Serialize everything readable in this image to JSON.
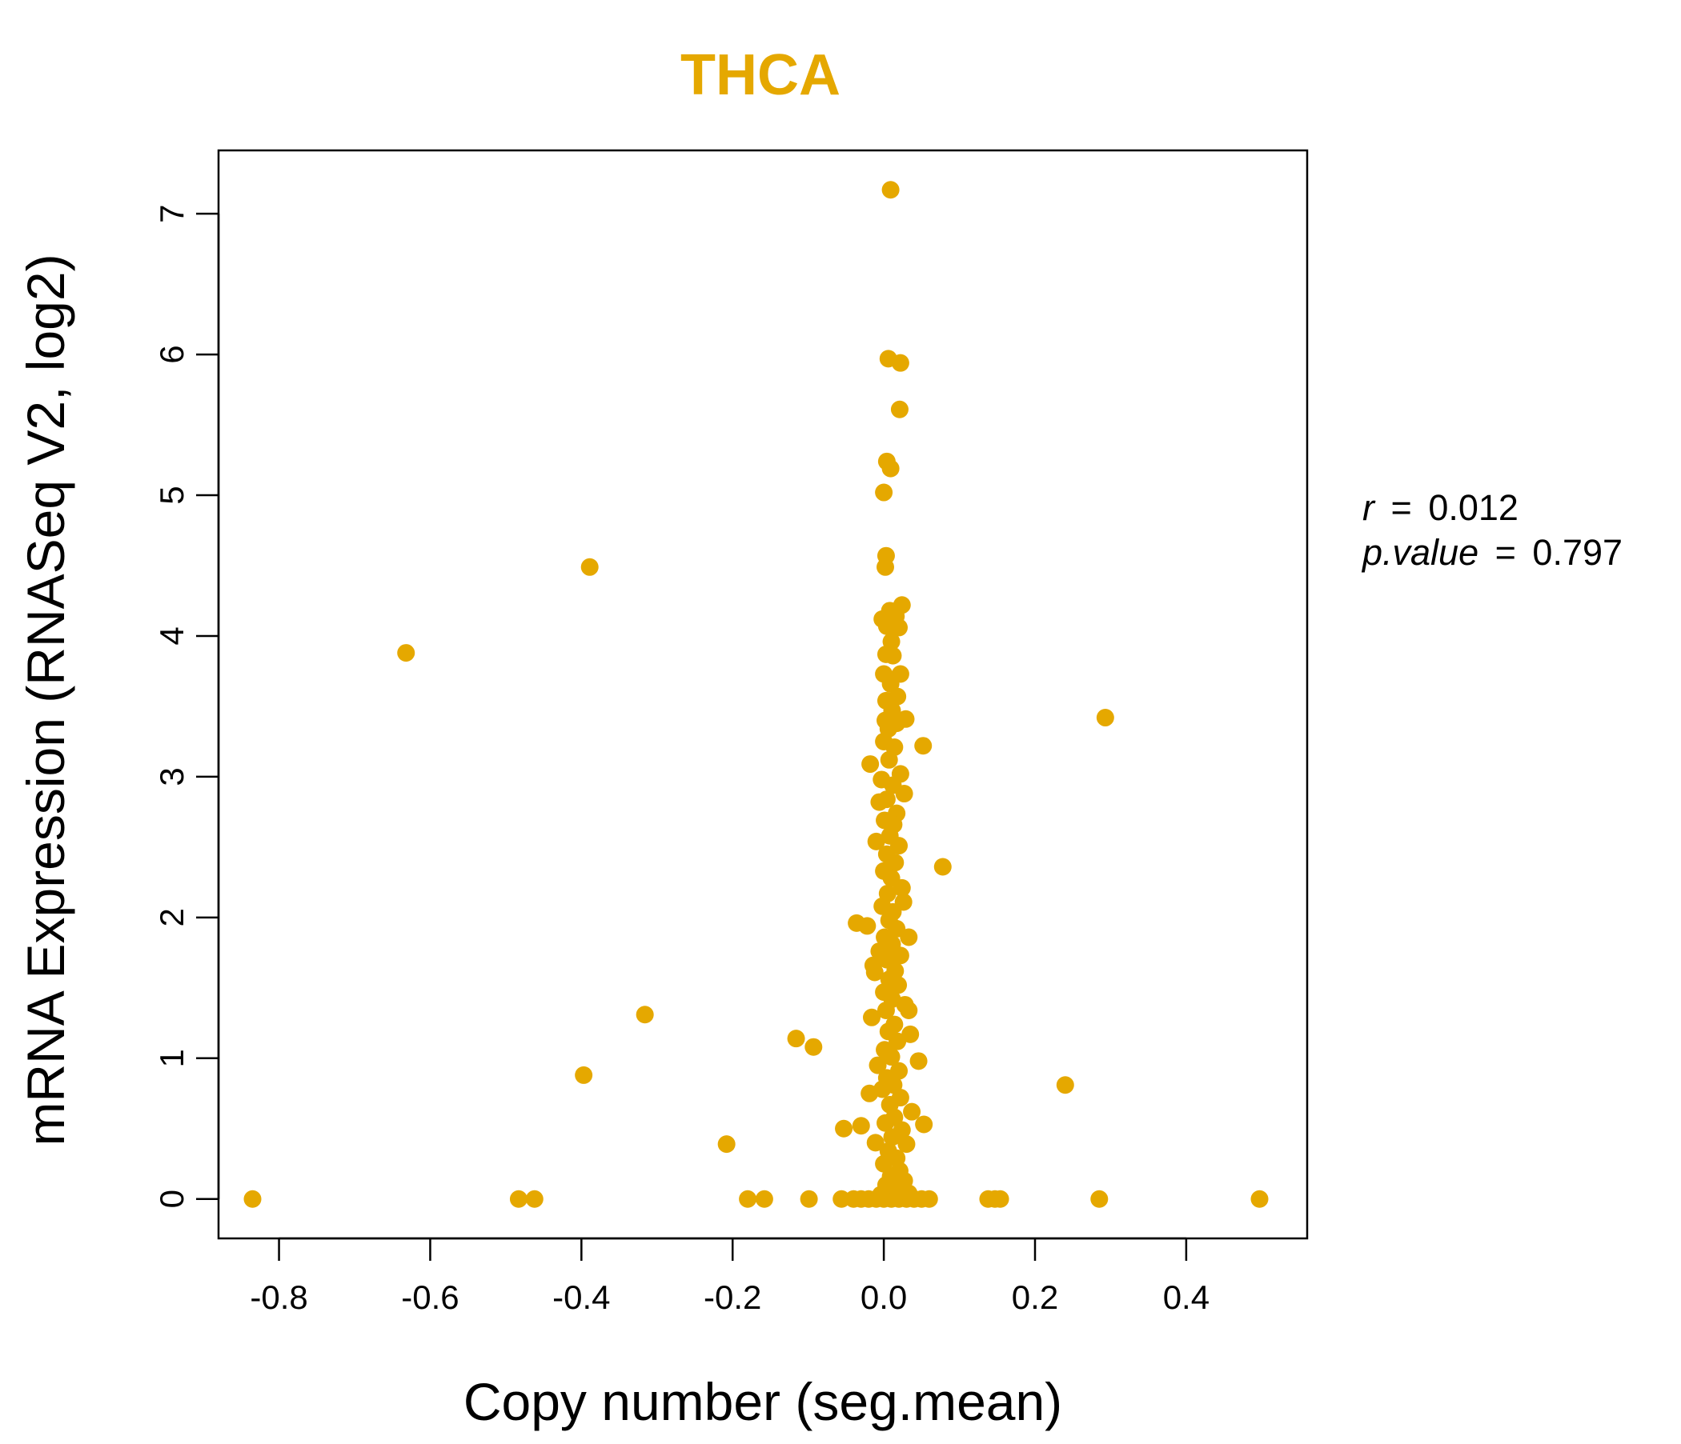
{
  "chart_data": {
    "type": "scatter",
    "title": "THCA",
    "xlabel": "Copy number (seg.mean)",
    "ylabel": "mRNA Expression (RNASeq V2, log2)",
    "xlim": [
      -0.88,
      0.56
    ],
    "ylim": [
      -0.28,
      7.45
    ],
    "x_ticks": [
      -0.8,
      -0.6,
      -0.4,
      -0.2,
      0.0,
      0.2,
      0.4
    ],
    "x_tick_labels": [
      "-0.8",
      "-0.6",
      "-0.4",
      "-0.2",
      "0.0",
      "0.2",
      "0.4"
    ],
    "y_ticks": [
      0,
      1,
      2,
      3,
      4,
      5,
      6,
      7
    ],
    "y_tick_labels": [
      "0",
      "1",
      "2",
      "3",
      "4",
      "5",
      "6",
      "7"
    ],
    "grid": false,
    "legend": "none",
    "point_color": "#E5A800",
    "stats": {
      "r_label": "r",
      "r_value": "0.012",
      "p_label": "p.value",
      "p_value": "0.797",
      "eq": "="
    },
    "points": [
      [
        -0.835,
        0
      ],
      [
        -0.483,
        0
      ],
      [
        -0.462,
        0
      ],
      [
        -0.18,
        0
      ],
      [
        -0.158,
        0
      ],
      [
        -0.099,
        0
      ],
      [
        -0.056,
        0
      ],
      [
        -0.04,
        0
      ],
      [
        -0.03,
        0
      ],
      [
        -0.02,
        0
      ],
      [
        -0.01,
        0
      ],
      [
        0.0,
        0
      ],
      [
        0.01,
        0
      ],
      [
        0.02,
        0
      ],
      [
        0.03,
        0
      ],
      [
        0.04,
        0
      ],
      [
        0.05,
        0
      ],
      [
        0.06,
        0
      ],
      [
        0.138,
        0
      ],
      [
        0.147,
        0
      ],
      [
        0.154,
        0
      ],
      [
        0.285,
        0
      ],
      [
        0.497,
        0
      ],
      [
        -0.632,
        3.88
      ],
      [
        -0.389,
        4.49
      ],
      [
        -0.316,
        1.31
      ],
      [
        -0.397,
        0.88
      ],
      [
        -0.208,
        0.39
      ],
      [
        -0.116,
        1.14
      ],
      [
        -0.093,
        1.08
      ],
      [
        -0.053,
        0.5
      ],
      [
        -0.036,
        1.96
      ],
      [
        -0.03,
        0.52
      ],
      [
        -0.022,
        1.94
      ],
      [
        -0.018,
        3.09
      ],
      [
        0.052,
        3.22
      ],
      [
        0.078,
        2.36
      ],
      [
        0.046,
        0.98
      ],
      [
        0.053,
        0.53
      ],
      [
        0.033,
        1.34
      ],
      [
        0.033,
        1.86
      ],
      [
        0.24,
        0.81
      ],
      [
        0.293,
        3.42
      ],
      [
        0.009,
        7.17
      ],
      [
        0.006,
        5.97
      ],
      [
        0.022,
        5.94
      ],
      [
        0.021,
        5.61
      ],
      [
        0.004,
        5.24
      ],
      [
        0.009,
        5.19
      ],
      [
        0.0,
        5.02
      ],
      [
        0.003,
        4.57
      ],
      [
        0.002,
        4.49
      ],
      [
        0.024,
        4.22
      ],
      [
        0.008,
        4.18
      ],
      [
        0.016,
        4.14
      ],
      [
        -0.002,
        4.12
      ],
      [
        0.004,
        4.07
      ],
      [
        0.02,
        4.06
      ],
      [
        0.01,
        3.96
      ],
      [
        0.003,
        3.87
      ],
      [
        0.012,
        3.86
      ],
      [
        0.0,
        3.73
      ],
      [
        0.022,
        3.73
      ],
      [
        0.009,
        3.66
      ],
      [
        0.018,
        3.57
      ],
      [
        0.003,
        3.54
      ],
      [
        0.011,
        3.47
      ],
      [
        0.029,
        3.41
      ],
      [
        0.002,
        3.4
      ],
      [
        0.017,
        3.38
      ],
      [
        0.006,
        3.34
      ],
      [
        0.0,
        3.25
      ],
      [
        0.014,
        3.21
      ],
      [
        0.007,
        3.12
      ],
      [
        0.022,
        3.02
      ],
      [
        -0.003,
        2.98
      ],
      [
        0.012,
        2.94
      ],
      [
        0.027,
        2.88
      ],
      [
        0.004,
        2.84
      ],
      [
        -0.006,
        2.82
      ],
      [
        0.017,
        2.74
      ],
      [
        0.001,
        2.69
      ],
      [
        0.013,
        2.66
      ],
      [
        0.008,
        2.58
      ],
      [
        -0.01,
        2.54
      ],
      [
        0.02,
        2.51
      ],
      [
        0.004,
        2.45
      ],
      [
        0.015,
        2.39
      ],
      [
        0.0,
        2.33
      ],
      [
        0.01,
        2.28
      ],
      [
        0.024,
        2.21
      ],
      [
        0.005,
        2.17
      ],
      [
        0.026,
        2.11
      ],
      [
        -0.002,
        2.08
      ],
      [
        0.012,
        2.04
      ],
      [
        0.007,
        1.98
      ],
      [
        0.017,
        1.92
      ],
      [
        0.001,
        1.86
      ],
      [
        0.011,
        1.81
      ],
      [
        -0.006,
        1.76
      ],
      [
        0.022,
        1.73
      ],
      [
        0.004,
        1.7
      ],
      [
        -0.014,
        1.66
      ],
      [
        0.015,
        1.62
      ],
      [
        -0.012,
        1.61
      ],
      [
        0.007,
        1.56
      ],
      [
        0.019,
        1.52
      ],
      [
        0.0,
        1.47
      ],
      [
        0.011,
        1.42
      ],
      [
        0.028,
        1.38
      ],
      [
        0.003,
        1.34
      ],
      [
        -0.016,
        1.29
      ],
      [
        0.014,
        1.24
      ],
      [
        0.006,
        1.19
      ],
      [
        0.035,
        1.17
      ],
      [
        0.018,
        1.12
      ],
      [
        0.001,
        1.06
      ],
      [
        0.01,
        1.01
      ],
      [
        -0.008,
        0.95
      ],
      [
        0.02,
        0.91
      ],
      [
        0.004,
        0.86
      ],
      [
        0.013,
        0.81
      ],
      [
        -0.002,
        0.78
      ],
      [
        -0.019,
        0.75
      ],
      [
        0.022,
        0.72
      ],
      [
        0.008,
        0.67
      ],
      [
        0.037,
        0.62
      ],
      [
        0.014,
        0.58
      ],
      [
        0.002,
        0.54
      ],
      [
        0.024,
        0.49
      ],
      [
        -0.011,
        0.4
      ],
      [
        0.011,
        0.44
      ],
      [
        0.03,
        0.39
      ],
      [
        0.006,
        0.34
      ],
      [
        0.017,
        0.29
      ],
      [
        0.0,
        0.25
      ],
      [
        0.021,
        0.2
      ],
      [
        0.009,
        0.16
      ],
      [
        0.027,
        0.13
      ],
      [
        0.003,
        0.1
      ],
      [
        0.015,
        0.06
      ],
      [
        0.033,
        0.04
      ],
      [
        -0.004,
        0.03
      ]
    ]
  }
}
